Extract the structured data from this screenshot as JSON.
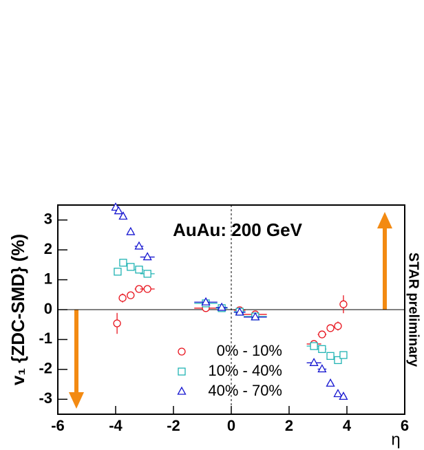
{
  "chart_data": {
    "type": "scatter",
    "title": "AuAu: 200 GeV",
    "annotation": "STAR preliminary",
    "x_label": "η",
    "y_label": "v₁ {ZDC-SMD} (%)",
    "xlim": [
      -6,
      6
    ],
    "ylim": [
      -3.5,
      3.5
    ],
    "xticks": [
      -6,
      -4,
      -2,
      0,
      2,
      4,
      6
    ],
    "yticks": [
      -3,
      -2,
      -1,
      0,
      1,
      2,
      3
    ],
    "legend": "bottom",
    "series": [
      {
        "name": "0% - 10%",
        "color": "#e8141e",
        "marker": "circle",
        "x": [
          -3.95,
          -3.76,
          -3.48,
          -3.19,
          -2.9,
          -0.88,
          -0.33,
          0.29,
          0.83,
          2.86,
          3.14,
          3.43,
          3.69,
          3.88
        ],
        "values": [
          -0.46,
          0.39,
          0.48,
          0.69,
          0.69,
          0.05,
          0.05,
          -0.02,
          -0.16,
          -1.15,
          -0.83,
          -0.62,
          -0.55,
          0.18
        ],
        "xerr": [
          0.1,
          0.1,
          0.1,
          0.15,
          0.25,
          0.4,
          0.2,
          0.2,
          0.4,
          0.25,
          0.15,
          0.1,
          0.1,
          0.1
        ],
        "yerr": [
          0.35,
          0.15,
          0.12,
          0.1,
          0.1,
          0.05,
          0.05,
          0.05,
          0.08,
          0.1,
          0.1,
          0.12,
          0.15,
          0.3
        ]
      },
      {
        "name": "10% - 40%",
        "color": "#1fb3b3",
        "marker": "square",
        "x": [
          -3.93,
          -3.74,
          -3.48,
          -3.19,
          -2.9,
          -0.88,
          -0.33,
          0.29,
          0.83,
          2.86,
          3.14,
          3.43,
          3.69,
          3.88
        ],
        "values": [
          1.27,
          1.57,
          1.43,
          1.34,
          1.2,
          0.21,
          0.05,
          -0.07,
          -0.23,
          -1.22,
          -1.32,
          -1.55,
          -1.69,
          -1.52
        ],
        "xerr": [
          0.1,
          0.1,
          0.1,
          0.15,
          0.25,
          0.4,
          0.2,
          0.2,
          0.4,
          0.25,
          0.15,
          0.1,
          0.1,
          0.1
        ],
        "yerr": [
          0.05,
          0.05,
          0.05,
          0.05,
          0.05,
          0.03,
          0.03,
          0.03,
          0.03,
          0.05,
          0.05,
          0.05,
          0.05,
          0.05
        ]
      },
      {
        "name": "40% - 70%",
        "color": "#1616d0",
        "marker": "triangle",
        "x": [
          -4.0,
          -3.9,
          -3.74,
          -3.48,
          -3.19,
          -2.9,
          -0.88,
          -0.33,
          0.29,
          0.83,
          2.86,
          3.14,
          3.43,
          3.69,
          3.88
        ],
        "values": [
          3.42,
          3.3,
          3.12,
          2.6,
          2.12,
          1.76,
          0.25,
          0.07,
          -0.09,
          -0.25,
          -1.78,
          -1.99,
          -2.47,
          -2.82,
          -2.91
        ],
        "xerr": [
          0.05,
          0.1,
          0.1,
          0.1,
          0.15,
          0.25,
          0.4,
          0.2,
          0.2,
          0.4,
          0.25,
          0.15,
          0.1,
          0.1,
          0.1
        ],
        "yerr": [
          0.05,
          0.05,
          0.05,
          0.05,
          0.05,
          0.05,
          0.03,
          0.03,
          0.03,
          0.03,
          0.05,
          0.05,
          0.05,
          0.05,
          0.05
        ]
      }
    ]
  }
}
